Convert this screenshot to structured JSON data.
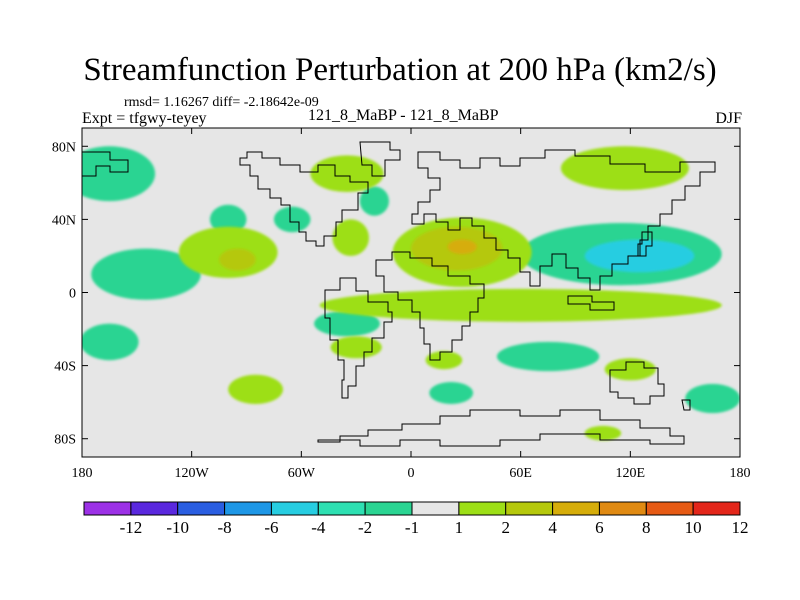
{
  "title": "Streamfunction Perturbation at 200 hPa (km2/s)",
  "stats": "rmsd= 1.16267 diff= -2.18642e-09",
  "expt_label": "Expt = tfgwy-teyey",
  "case_label": "121_8_MaBP - 121_8_MaBP",
  "season_label": "DJF",
  "chart_data": {
    "type": "heatmap",
    "title": "Streamfunction Perturbation at 200 hPa (km2/s)",
    "xlim": [
      -180,
      180
    ],
    "ylim": [
      -90,
      90
    ],
    "x_ticks": [
      {
        "value": -180,
        "label": "180"
      },
      {
        "value": -120,
        "label": "120W"
      },
      {
        "value": -60,
        "label": "60W"
      },
      {
        "value": 0,
        "label": "0"
      },
      {
        "value": 60,
        "label": "60E"
      },
      {
        "value": 120,
        "label": "120E"
      },
      {
        "value": 180,
        "label": "180"
      }
    ],
    "y_ticks": [
      {
        "value": 80,
        "label": "80N"
      },
      {
        "value": 40,
        "label": "40N"
      },
      {
        "value": 0,
        "label": "0"
      },
      {
        "value": -40,
        "label": "40S"
      },
      {
        "value": -80,
        "label": "80S"
      }
    ],
    "background_color": "#e6e6e6",
    "levels": [
      {
        "label": "-12",
        "color": "#9c31e6"
      },
      {
        "label": "-10",
        "color": "#5a28de"
      },
      {
        "label": "-8",
        "color": "#2a5ee1"
      },
      {
        "label": "-6",
        "color": "#1e97e6"
      },
      {
        "label": "-4",
        "color": "#27cde1"
      },
      {
        "label": "-2",
        "color": "#2ee0b2"
      },
      {
        "label": "-1",
        "color": "#2ad492"
      },
      {
        "label": "1",
        "color": "#e6e6e6"
      },
      {
        "label": "2",
        "color": "#9ddf17"
      },
      {
        "label": "4",
        "color": "#b5c80c"
      },
      {
        "label": "6",
        "color": "#d6ad0a"
      },
      {
        "label": "8",
        "color": "#e08a12"
      },
      {
        "label": "10",
        "color": "#e65a14"
      },
      {
        "label": "12",
        "color": "#e3261a"
      }
    ],
    "colorbar_labels": [
      "-12",
      "-10",
      "-8",
      "-6",
      "-4",
      "-2",
      "-1",
      "1",
      "2",
      "4",
      "6",
      "8",
      "10",
      "12"
    ],
    "regions": [
      {
        "kind": "negative",
        "level": "-1",
        "lon": -165,
        "lat": 65,
        "rx": 25,
        "ry": 15
      },
      {
        "kind": "negative",
        "level": "-1",
        "lon": -100,
        "lat": 40,
        "rx": 10,
        "ry": 8
      },
      {
        "kind": "negative",
        "level": "-1",
        "lon": -145,
        "lat": 10,
        "rx": 30,
        "ry": 14
      },
      {
        "kind": "negative",
        "level": "-1",
        "lon": -65,
        "lat": 40,
        "rx": 10,
        "ry": 7
      },
      {
        "kind": "negative",
        "level": "-1",
        "lon": -20,
        "lat": 50,
        "rx": 8,
        "ry": 8
      },
      {
        "kind": "negative",
        "level": "-1",
        "lon": 115,
        "lat": 21,
        "rx": 55,
        "ry": 17
      },
      {
        "kind": "negative",
        "level": "-4",
        "lon": 125,
        "lat": 20,
        "rx": 30,
        "ry": 9
      },
      {
        "kind": "negative",
        "level": "-1",
        "lon": -165,
        "lat": -27,
        "rx": 16,
        "ry": 10
      },
      {
        "kind": "negative",
        "level": "-1",
        "lon": -35,
        "lat": -17,
        "rx": 18,
        "ry": 7
      },
      {
        "kind": "negative",
        "level": "-1",
        "lon": 75,
        "lat": -35,
        "rx": 28,
        "ry": 8
      },
      {
        "kind": "negative",
        "level": "-1",
        "lon": 22,
        "lat": -55,
        "rx": 12,
        "ry": 6
      },
      {
        "kind": "negative",
        "level": "-1",
        "lon": 165,
        "lat": -58,
        "rx": 15,
        "ry": 8
      },
      {
        "kind": "positive",
        "level": "2",
        "lon": -35,
        "lat": 65,
        "rx": 20,
        "ry": 10
      },
      {
        "kind": "positive",
        "level": "2",
        "lon": 117,
        "lat": 68,
        "rx": 35,
        "ry": 12
      },
      {
        "kind": "positive",
        "level": "2",
        "lon": -100,
        "lat": 22,
        "rx": 27,
        "ry": 14
      },
      {
        "kind": "positive",
        "level": "4",
        "lon": -95,
        "lat": 18,
        "rx": 10,
        "ry": 6
      },
      {
        "kind": "positive",
        "level": "2",
        "lon": -33,
        "lat": 30,
        "rx": 10,
        "ry": 10
      },
      {
        "kind": "positive",
        "level": "2",
        "lon": 28,
        "lat": 22,
        "rx": 38,
        "ry": 19
      },
      {
        "kind": "positive",
        "level": "4",
        "lon": 25,
        "lat": 24,
        "rx": 25,
        "ry": 12
      },
      {
        "kind": "positive",
        "level": "6",
        "lon": 28,
        "lat": 25,
        "rx": 8,
        "ry": 4
      },
      {
        "kind": "positive",
        "level": "2",
        "lon": 60,
        "lat": -7,
        "rx": 110,
        "ry": 9
      },
      {
        "kind": "positive",
        "level": "2",
        "lon": -30,
        "lat": -30,
        "rx": 14,
        "ry": 6
      },
      {
        "kind": "positive",
        "level": "2",
        "lon": -85,
        "lat": -53,
        "rx": 15,
        "ry": 8
      },
      {
        "kind": "positive",
        "level": "2",
        "lon": 120,
        "lat": -42,
        "rx": 14,
        "ry": 6
      },
      {
        "kind": "positive",
        "level": "2",
        "lon": 18,
        "lat": -37,
        "rx": 10,
        "ry": 5
      },
      {
        "kind": "positive",
        "level": "2",
        "lon": 105,
        "lat": -77,
        "rx": 10,
        "ry": 4
      }
    ]
  }
}
